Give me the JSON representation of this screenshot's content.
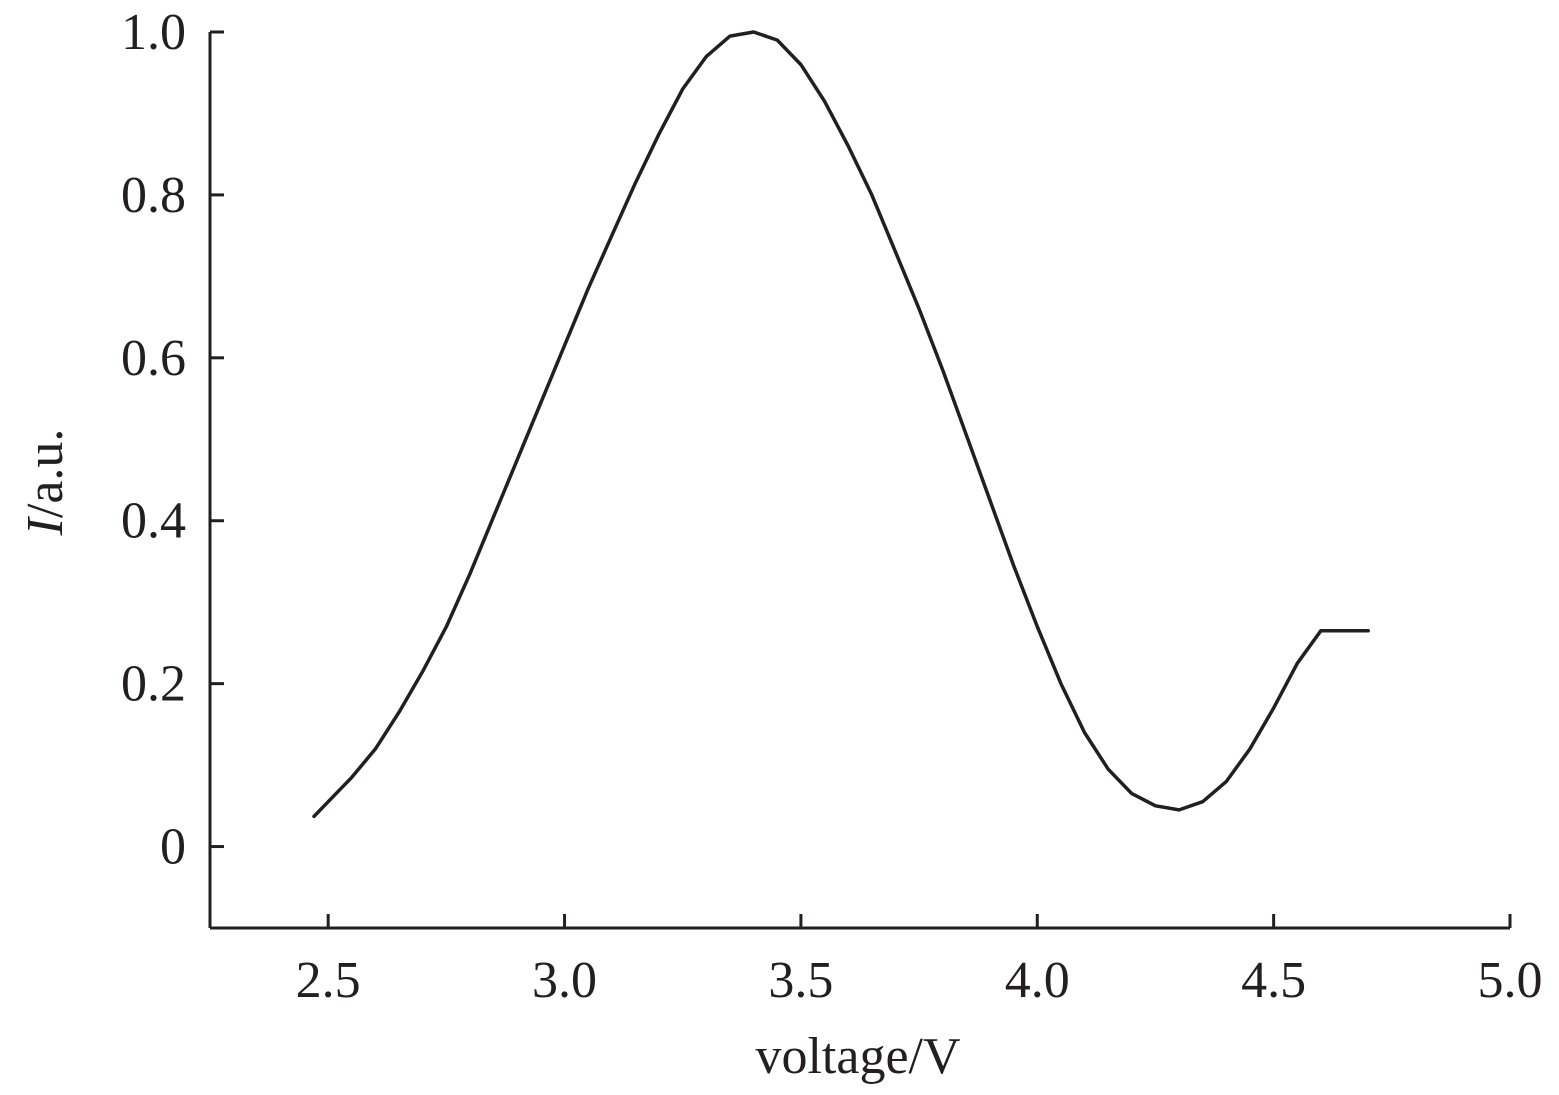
{
  "chart_data": {
    "type": "line",
    "title": "",
    "xlabel": "voltage/V",
    "ylabel": {
      "italic": "I",
      "rest": "/a.u."
    },
    "xlim": [
      2.25,
      5.0
    ],
    "ylim": [
      -0.1,
      1.0
    ],
    "xticks": [
      2.5,
      3.0,
      3.5,
      4.0,
      4.5,
      5.0
    ],
    "xtick_labels": [
      "2.5",
      "3.0",
      "3.5",
      "4.0",
      "4.5",
      "5.0"
    ],
    "yticks": [
      0,
      0.2,
      0.4,
      0.6,
      0.8,
      1.0
    ],
    "ytick_labels": [
      "0",
      "0.2",
      "0.4",
      "0.6",
      "0.8",
      "1.0"
    ],
    "grid": false,
    "legend": "none",
    "line_color": "#231f20",
    "series": [
      {
        "x": [
          2.47,
          2.5,
          2.55,
          2.6,
          2.65,
          2.7,
          2.75,
          2.8,
          2.85,
          2.9,
          2.95,
          3.0,
          3.05,
          3.1,
          3.15,
          3.2,
          3.25,
          3.3,
          3.35,
          3.4,
          3.45,
          3.5,
          3.55,
          3.6,
          3.65,
          3.7,
          3.75,
          3.8,
          3.85,
          3.9,
          3.95,
          4.0,
          4.05,
          4.1,
          4.15,
          4.2,
          4.25,
          4.3,
          4.35,
          4.4,
          4.45,
          4.5,
          4.55,
          4.6,
          4.65,
          4.7
        ],
        "y": [
          0.037,
          0.055,
          0.085,
          0.12,
          0.165,
          0.215,
          0.27,
          0.335,
          0.405,
          0.475,
          0.545,
          0.615,
          0.685,
          0.75,
          0.815,
          0.875,
          0.93,
          0.97,
          0.995,
          1.0,
          0.99,
          0.96,
          0.915,
          0.86,
          0.8,
          0.73,
          0.66,
          0.585,
          0.505,
          0.425,
          0.345,
          0.27,
          0.2,
          0.14,
          0.095,
          0.065,
          0.05,
          0.045,
          0.055,
          0.08,
          0.12,
          0.17,
          0.225,
          0.265,
          0.265,
          0.265
        ]
      }
    ]
  }
}
